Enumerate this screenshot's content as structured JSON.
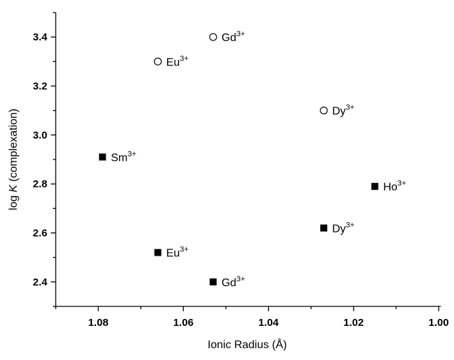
{
  "chart_data": {
    "type": "scatter",
    "xlabel": "Ionic Radius (Å)",
    "ylabel": {
      "prefix": "log",
      "italic": "K",
      "suffix": "(complexation)"
    },
    "xlim": [
      1.09,
      1.0
    ],
    "ylim": [
      2.3,
      3.5
    ],
    "xticks": [
      1.08,
      1.06,
      1.04,
      1.02,
      {
        "value": 1,
        "label": "1.00"
      }
    ],
    "yticks": [
      2.4,
      2.6,
      2.8,
      {
        "value": 3,
        "label": "3.0"
      },
      3.2,
      3.4
    ],
    "xminorticks": [
      1.09,
      1.07,
      1.05,
      1.03,
      1.01
    ],
    "yminorticks": [
      2.3,
      2.5,
      2.7,
      2.9,
      3.1,
      3.3,
      3.5
    ],
    "label_superscript": "3+",
    "series": [
      {
        "marker": "open-circle",
        "color": "#000000",
        "x": [
          1.066,
          1.053,
          1.027
        ],
        "values": [
          3.3,
          3.4,
          3.1
        ],
        "labels": [
          "Eu",
          "Gd",
          "Dy"
        ]
      },
      {
        "marker": "filled-square",
        "color": "#000000",
        "x": [
          1.079,
          1.066,
          1.053,
          1.027,
          1.015
        ],
        "values": [
          2.91,
          2.52,
          2.4,
          2.62,
          2.79
        ],
        "labels": [
          "Sm",
          "Eu",
          "Gd",
          "Dy",
          "Ho"
        ]
      }
    ]
  }
}
